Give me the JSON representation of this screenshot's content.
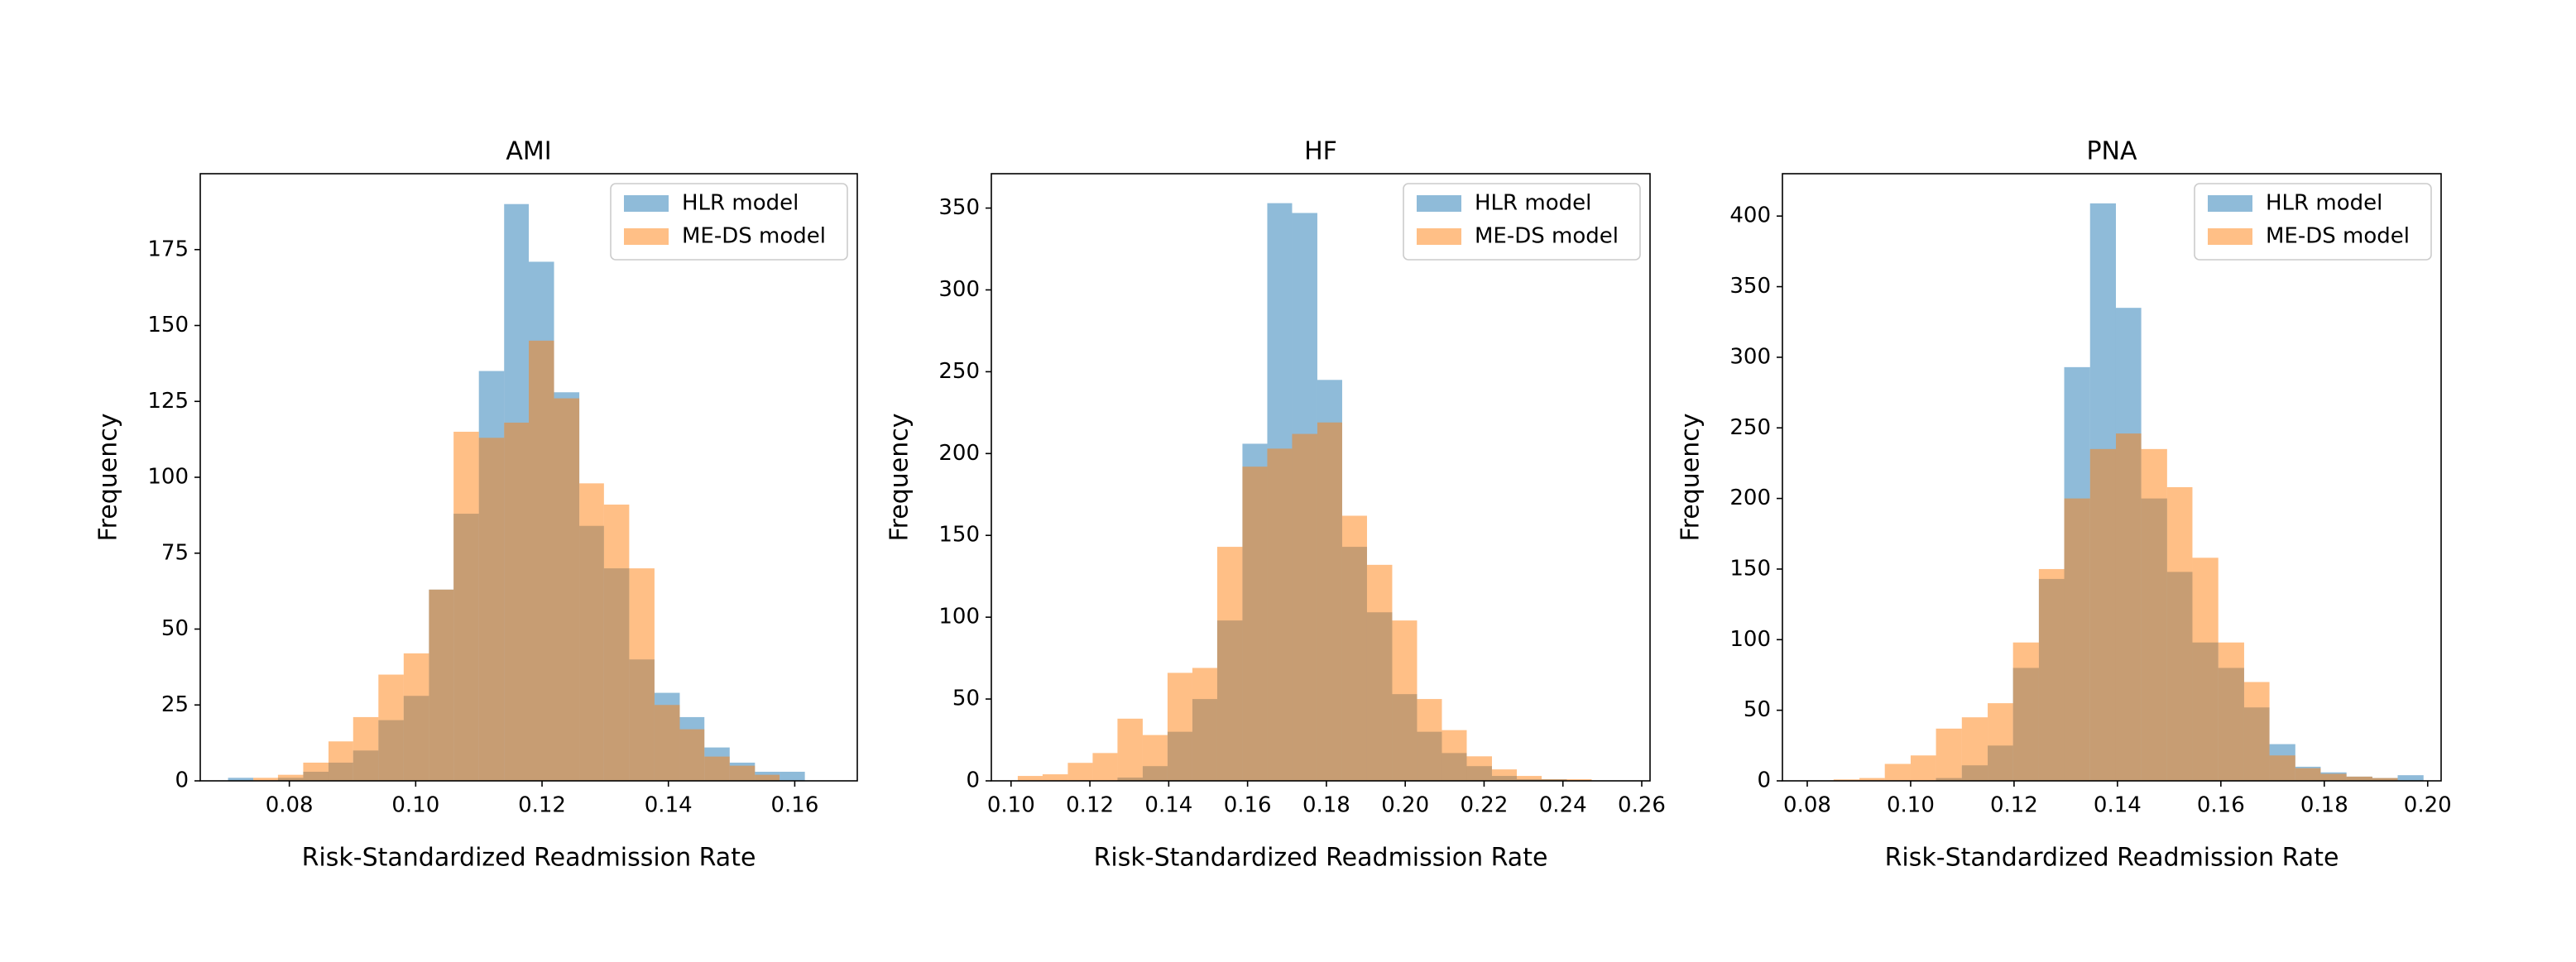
{
  "chart_data": [
    {
      "type": "histogram",
      "title": "AMI",
      "x_label": "Risk-Standardized Readmission Rate",
      "y_label": "Frequency",
      "xlim": [
        0.0659,
        0.1699
      ],
      "ylim": [
        0,
        200
      ],
      "xticks": [
        0.08,
        {
          "value": 0.1,
          "label": "0.10"
        },
        0.12,
        0.14,
        0.16
      ],
      "yticks": [
        0,
        25,
        50,
        75,
        100,
        125,
        150,
        175
      ],
      "legend": "upper right",
      "series": [
        {
          "name": "HLR model",
          "color": "#1f77b4",
          "bins": [
            0.0703,
            0.0743,
            0.0782,
            0.0822,
            0.0862,
            0.0901,
            0.0941,
            0.0981,
            0.1021,
            0.106,
            0.11,
            0.114,
            0.1179,
            0.1219,
            0.1259,
            0.1298,
            0.1338,
            0.1378,
            0.1418,
            0.1457,
            0.1497,
            0.1537,
            0.1576,
            0.1616
          ],
          "values": [
            1,
            0,
            1,
            3,
            6,
            10,
            20,
            28,
            63,
            88,
            135,
            190,
            171,
            128,
            84,
            70,
            40,
            29,
            21,
            11,
            6,
            3,
            3
          ]
        },
        {
          "name": "ME-DS model",
          "color": "#ff7f0e",
          "bins": [
            0.0743,
            0.0782,
            0.0822,
            0.0862,
            0.0901,
            0.0941,
            0.0981,
            0.1021,
            0.106,
            0.11,
            0.114,
            0.1179,
            0.1219,
            0.1259,
            0.1298,
            0.1338,
            0.1378,
            0.1418,
            0.1457,
            0.1497,
            0.1537,
            0.1576
          ],
          "values": [
            1,
            2,
            6,
            13,
            21,
            35,
            42,
            63,
            115,
            113,
            118,
            145,
            126,
            98,
            91,
            70,
            25,
            17,
            8,
            5,
            2
          ]
        }
      ]
    },
    {
      "type": "histogram",
      "title": "HF",
      "x_label": "Risk-Standardized Readmission Rate",
      "y_label": "Frequency",
      "xlim": [
        0.095,
        0.2621
      ],
      "ylim": [
        0,
        371
      ],
      "xticks": [
        {
          "value": 0.1,
          "label": "0.10"
        },
        0.12,
        0.14,
        0.16,
        0.18,
        {
          "value": 0.2,
          "label": "0.20"
        },
        0.22,
        0.24,
        0.26
      ],
      "yticks": [
        0,
        50,
        100,
        150,
        200,
        250,
        300,
        350
      ],
      "legend": "upper right",
      "series": [
        {
          "name": "HLR model",
          "color": "#1f77b4",
          "bins": [
            0.127,
            0.1334,
            0.1397,
            0.146,
            0.1523,
            0.1587,
            0.165,
            0.1713,
            0.1777,
            0.184,
            0.1903,
            0.1967,
            0.203,
            0.2093,
            0.2156,
            0.222,
            0.2283,
            0.2346,
            0.241
          ],
          "values": [
            2,
            9,
            30,
            50,
            98,
            206,
            353,
            347,
            245,
            143,
            103,
            53,
            30,
            17,
            9,
            3,
            1,
            1
          ]
        },
        {
          "name": "ME-DS model",
          "color": "#ff7f0e",
          "bins": [
            0.1017,
            0.108,
            0.1144,
            0.1207,
            0.127,
            0.1334,
            0.1397,
            0.146,
            0.1523,
            0.1587,
            0.165,
            0.1713,
            0.1777,
            0.184,
            0.1903,
            0.1967,
            0.203,
            0.2093,
            0.2156,
            0.222,
            0.2283,
            0.2346,
            0.241,
            0.2473
          ],
          "values": [
            3,
            4,
            11,
            17,
            38,
            28,
            66,
            69,
            143,
            192,
            203,
            212,
            219,
            162,
            132,
            98,
            50,
            31,
            15,
            7,
            3,
            1,
            1
          ]
        }
      ]
    },
    {
      "type": "histogram",
      "title": "PNA",
      "x_label": "Risk-Standardized Readmission Rate",
      "y_label": "Frequency",
      "xlim": [
        0.0752,
        0.2026
      ],
      "ylim": [
        0,
        430
      ],
      "xticks": [
        0.08,
        {
          "value": 0.1,
          "label": "0.10"
        },
        0.12,
        0.14,
        0.16,
        0.18,
        {
          "value": 0.2,
          "label": "0.20"
        }
      ],
      "yticks": [
        0,
        50,
        100,
        150,
        200,
        250,
        300,
        350,
        400
      ],
      "legend": "upper right",
      "series": [
        {
          "name": "HLR model",
          "color": "#1f77b4",
          "bins": [
            0.1049,
            0.1099,
            0.1149,
            0.1198,
            0.1248,
            0.1297,
            0.1347,
            0.1397,
            0.1446,
            0.1496,
            0.1545,
            0.1595,
            0.1645,
            0.1694,
            0.1744,
            0.1793,
            0.1843,
            0.1893,
            0.1942,
            0.1992
          ],
          "values": [
            2,
            11,
            25,
            80,
            143,
            293,
            409,
            335,
            200,
            148,
            98,
            80,
            52,
            26,
            10,
            6,
            3,
            2,
            4
          ]
        },
        {
          "name": "ME-DS model",
          "color": "#ff7f0e",
          "bins": [
            0.0851,
            0.0901,
            0.095,
            0.1,
            0.1049,
            0.1099,
            0.1149,
            0.1198,
            0.1248,
            0.1297,
            0.1347,
            0.1397,
            0.1446,
            0.1496,
            0.1545,
            0.1595,
            0.1645,
            0.1694,
            0.1744,
            0.1793,
            0.1843,
            0.1893,
            0.1942
          ],
          "values": [
            1,
            2,
            12,
            18,
            37,
            45,
            55,
            98,
            150,
            200,
            235,
            246,
            235,
            208,
            158,
            98,
            70,
            18,
            9,
            5,
            3,
            2
          ]
        }
      ]
    }
  ]
}
